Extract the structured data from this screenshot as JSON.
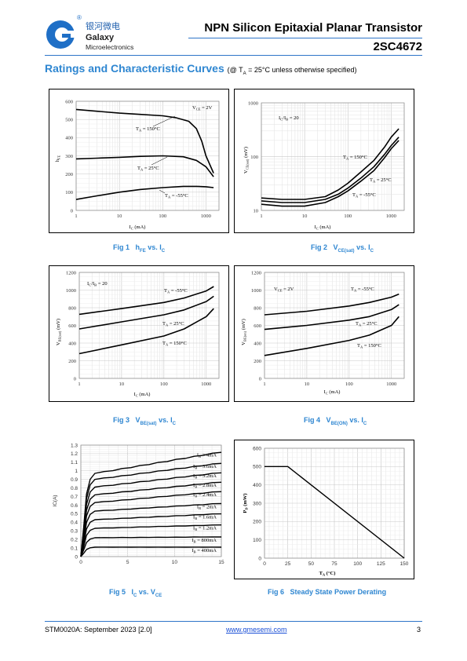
{
  "header": {
    "logo_cn": "银河微电",
    "logo_en1": "Galaxy",
    "logo_en2": "Microelectronics",
    "logo_reg": "®",
    "title": "NPN Silicon Epitaxial Planar Transistor",
    "part_no": "2SC4672"
  },
  "section": {
    "title": "Ratings and Characteristic Curves",
    "note_prefix": "(@ T",
    "note_sub": "A",
    "note_suffix": " = 25°C unless otherwise specified)"
  },
  "captions": {
    "fig1": {
      "num": "Fig 1",
      "main": "h",
      "sub": "FE",
      "tail": " vs. I",
      "sub2": "C"
    },
    "fig2": {
      "num": "Fig 2",
      "main": "V",
      "sub": "CE(sat)",
      "tail": " vs. I",
      "sub2": "C"
    },
    "fig3": {
      "num": "Fig 3",
      "main": "V",
      "sub": "BE(sat)",
      "tail": " vs. I",
      "sub2": "C"
    },
    "fig4": {
      "num": "Fig 4",
      "main": "V",
      "sub": "BE(ON)",
      "tail": " vs. I",
      "sub2": "C"
    },
    "fig5": {
      "num": "Fig 5",
      "main": "I",
      "sub": "C",
      "tail": " vs. V",
      "sub2": "CE"
    },
    "fig6": {
      "num": "Fig 6",
      "main": "Steady State Power Derating",
      "sub": "",
      "tail": "",
      "sub2": ""
    }
  },
  "footer": {
    "doc": "STM0020A: September 2023 [2.0]",
    "url": "www.gmesemi.com",
    "page": "3"
  },
  "chart_data": [
    {
      "id": "fig1",
      "type": "line",
      "x_scale": "log",
      "xlim": [
        1,
        2000
      ],
      "ylim": [
        0,
        600
      ],
      "x_ticks": [
        "1",
        "10",
        "100",
        "1000"
      ],
      "y_ticks": [
        "0",
        "100",
        "200",
        "300",
        "400",
        "500",
        "600"
      ],
      "xlabel": "IC (mA)",
      "ylabel": "hFE",
      "grid": true,
      "annotation": "VCE = 2V",
      "series": [
        {
          "name": "TA = 150°C",
          "x": [
            1,
            3,
            10,
            30,
            100,
            200,
            400,
            600,
            800,
            1000,
            1500
          ],
          "y": [
            555,
            545,
            535,
            528,
            520,
            510,
            490,
            450,
            380,
            300,
            205
          ]
        },
        {
          "name": "TA = 25°C",
          "x": [
            1,
            3,
            10,
            30,
            100,
            300,
            600,
            1000,
            1500
          ],
          "y": [
            283,
            287,
            292,
            297,
            300,
            295,
            275,
            240,
            185
          ]
        },
        {
          "name": "TA = -55°C",
          "x": [
            1,
            3,
            10,
            30,
            100,
            300,
            600,
            1000,
            1500
          ],
          "y": [
            60,
            80,
            100,
            115,
            125,
            132,
            132,
            130,
            125
          ]
        }
      ]
    },
    {
      "id": "fig2",
      "type": "line",
      "x_scale": "log",
      "y_scale": "log",
      "xlim": [
        1,
        2000
      ],
      "ylim": [
        10,
        1000
      ],
      "x_ticks": [
        "1",
        "10",
        "100",
        "1000"
      ],
      "y_ticks": [
        "10",
        "100",
        "1000"
      ],
      "xlabel": "IC (mA)",
      "ylabel": "VCE(sat) (mV)",
      "grid": true,
      "annotation": "IC/IB = 20",
      "series": [
        {
          "name": "TA = 150°C",
          "x": [
            1,
            3,
            10,
            30,
            60,
            100,
            200,
            400,
            700,
            1000,
            1500
          ],
          "y": [
            17,
            16,
            16,
            18,
            24,
            32,
            52,
            85,
            150,
            230,
            330
          ]
        },
        {
          "name": "TA = 25°C",
          "x": [
            1,
            3,
            10,
            30,
            60,
            100,
            200,
            400,
            700,
            1000,
            1500
          ],
          "y": [
            15,
            14,
            14,
            16,
            20,
            26,
            40,
            65,
            110,
            160,
            230
          ]
        },
        {
          "name": "TA = -55°C",
          "x": [
            1,
            3,
            10,
            30,
            60,
            100,
            200,
            400,
            700,
            1000,
            1500
          ],
          "y": [
            13,
            12,
            12,
            14,
            18,
            23,
            35,
            55,
            95,
            140,
            200
          ]
        }
      ]
    },
    {
      "id": "fig3",
      "type": "line",
      "x_scale": "log",
      "xlim": [
        1,
        2000
      ],
      "ylim": [
        0,
        1200
      ],
      "x_ticks": [
        "1",
        "10",
        "100",
        "1000"
      ],
      "y_ticks": [
        "0",
        "200",
        "400",
        "600",
        "800",
        "1000",
        "1200"
      ],
      "xlabel": "IC (mA)",
      "ylabel": "VBE(sat) (mV)",
      "grid": true,
      "annotation": "IC/IB = 20",
      "series": [
        {
          "name": "TA = -55°C",
          "x": [
            1,
            10,
            100,
            300,
            1000,
            1500
          ],
          "y": [
            725,
            790,
            860,
            910,
            990,
            1040
          ]
        },
        {
          "name": "TA = 25°C",
          "x": [
            1,
            10,
            100,
            300,
            1000,
            1500
          ],
          "y": [
            560,
            640,
            720,
            775,
            870,
            930
          ]
        },
        {
          "name": "TA = 150°C",
          "x": [
            1,
            10,
            100,
            300,
            1000,
            1500
          ],
          "y": [
            280,
            380,
            480,
            560,
            700,
            790
          ]
        }
      ]
    },
    {
      "id": "fig4",
      "type": "line",
      "x_scale": "log",
      "xlim": [
        1,
        2000
      ],
      "ylim": [
        0,
        1200
      ],
      "x_ticks": [
        "1",
        "10",
        "100",
        "1000"
      ],
      "y_ticks": [
        "0",
        "200",
        "400",
        "600",
        "800",
        "1000",
        "1200"
      ],
      "xlabel": "IC (mA)",
      "ylabel": "VBE(on) (mV)",
      "grid": true,
      "annotation": "VCE = 2V",
      "series": [
        {
          "name": "TA = -55°C",
          "x": [
            1,
            10,
            100,
            300,
            1000,
            1500
          ],
          "y": [
            720,
            760,
            820,
            860,
            920,
            955
          ]
        },
        {
          "name": "TA = 25°C",
          "x": [
            1,
            10,
            100,
            300,
            1000,
            1500
          ],
          "y": [
            555,
            600,
            660,
            700,
            780,
            835
          ]
        },
        {
          "name": "TA = 150°C",
          "x": [
            1,
            10,
            100,
            300,
            1000,
            1500
          ],
          "y": [
            260,
            340,
            430,
            490,
            600,
            700
          ]
        }
      ]
    },
    {
      "id": "fig5",
      "type": "line",
      "xlim": [
        0,
        15
      ],
      "ylim": [
        0,
        1.3
      ],
      "x_ticks": [
        "0",
        "5",
        "10",
        "15"
      ],
      "y_ticks": [
        "0",
        "0.1",
        "0.2",
        "0.3",
        "0.4",
        "0.5",
        "0.6",
        "0.7",
        "0.8",
        "0.9",
        "1",
        "1.1",
        "1.2",
        "1.3"
      ],
      "xlabel": "VCE(V)",
      "ylabel": "IC(A)",
      "grid": true,
      "series": [
        {
          "name": "IB = 4mA",
          "sat": 0.97,
          "end": 1.22
        },
        {
          "name": "IB = 3.6mA",
          "sat": 0.9,
          "end": 1.09
        },
        {
          "name": "IB = 3.2mA",
          "sat": 0.81,
          "end": 0.98
        },
        {
          "name": "IB = 2.8mA",
          "sat": 0.72,
          "end": 0.87
        },
        {
          "name": "IB = 2.4mA",
          "sat": 0.63,
          "end": 0.76
        },
        {
          "name": "IB = 2mA",
          "sat": 0.53,
          "end": 0.62
        },
        {
          "name": "IB = 1.6mA",
          "sat": 0.43,
          "end": 0.5
        },
        {
          "name": "IB = 1.2mA",
          "sat": 0.33,
          "end": 0.37
        },
        {
          "name": "IB = 800mA",
          "sat": 0.22,
          "end": 0.23
        },
        {
          "name": "IB = 400mA",
          "sat": 0.11,
          "end": 0.11
        }
      ]
    },
    {
      "id": "fig6",
      "type": "line",
      "xlim": [
        0,
        150
      ],
      "ylim": [
        0,
        600
      ],
      "x_ticks": [
        "0",
        "25",
        "50",
        "75",
        "100",
        "125",
        "150"
      ],
      "y_ticks": [
        "0",
        "100",
        "200",
        "300",
        "400",
        "500",
        "600"
      ],
      "xlabel": "TA (°C)",
      "ylabel": "PD (mW)",
      "grid": true,
      "series": [
        {
          "name": "",
          "x": [
            0,
            25,
            150
          ],
          "y": [
            500,
            500,
            0
          ]
        }
      ]
    }
  ]
}
